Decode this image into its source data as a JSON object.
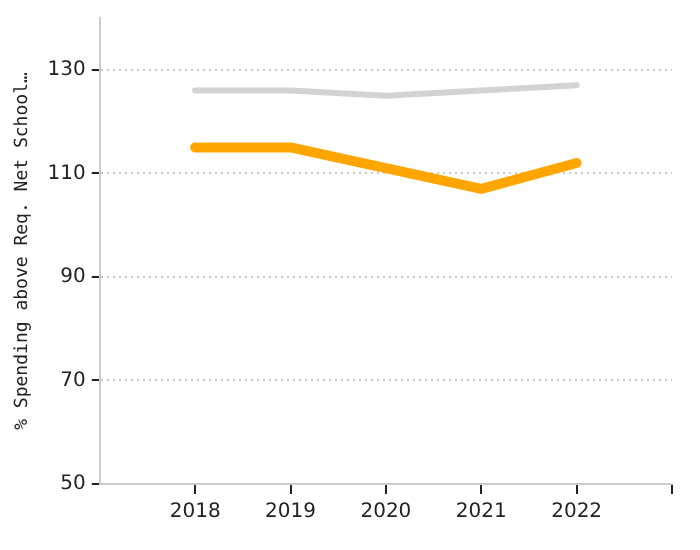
{
  "chart_data": {
    "type": "line",
    "ylabel": "% Spending above Req. Net School…",
    "x": [
      2018,
      2019,
      2020,
      2021,
      2022
    ],
    "xlim": [
      2017,
      2023
    ],
    "xticks": [
      2018,
      2019,
      2020,
      2021,
      2022,
      {
        "value": 2023,
        "label": null
      }
    ],
    "ylim": [
      50,
      140
    ],
    "yticks": [
      50,
      70,
      90,
      110,
      130
    ],
    "grid": "y",
    "legend": false,
    "marker": "none",
    "line_style": "solid",
    "series": [
      {
        "color": "#d3d3d3",
        "values": [
          126,
          126,
          125,
          126,
          127
        ]
      },
      {
        "color": "#ffa500",
        "values": [
          115,
          115,
          111,
          107,
          112
        ]
      }
    ]
  }
}
